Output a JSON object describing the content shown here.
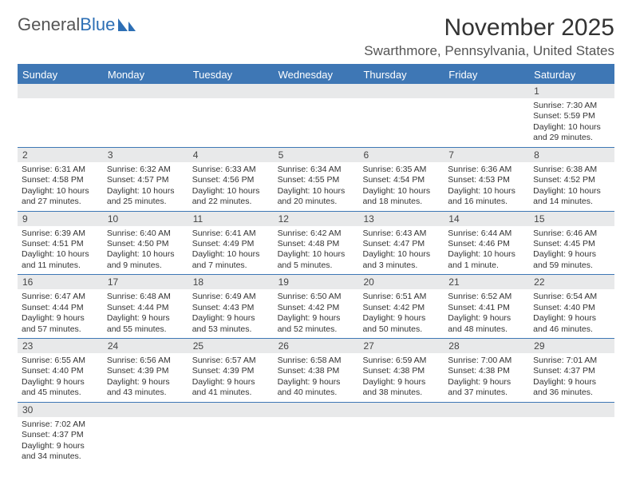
{
  "logo": {
    "text1": "General",
    "text2": "Blue"
  },
  "title": "November 2025",
  "location": "Swarthmore, Pennsylvania, United States",
  "colors": {
    "header_bar": "#3e77b5",
    "daynum_bg": "#e8e9ea",
    "divider": "#3e77b5",
    "text": "#333333",
    "logo_gray": "#555555",
    "logo_blue": "#2d6fb5"
  },
  "typography": {
    "title_fontsize": 30,
    "location_fontsize": 17,
    "dayhead_fontsize": 13,
    "daynum_fontsize": 12,
    "cell_fontsize": 10.5
  },
  "day_headers": [
    "Sunday",
    "Monday",
    "Tuesday",
    "Wednesday",
    "Thursday",
    "Friday",
    "Saturday"
  ],
  "weeks": [
    [
      {
        "n": "",
        "sr": "",
        "ss": "",
        "dl": ""
      },
      {
        "n": "",
        "sr": "",
        "ss": "",
        "dl": ""
      },
      {
        "n": "",
        "sr": "",
        "ss": "",
        "dl": ""
      },
      {
        "n": "",
        "sr": "",
        "ss": "",
        "dl": ""
      },
      {
        "n": "",
        "sr": "",
        "ss": "",
        "dl": ""
      },
      {
        "n": "",
        "sr": "",
        "ss": "",
        "dl": ""
      },
      {
        "n": "1",
        "sr": "Sunrise: 7:30 AM",
        "ss": "Sunset: 5:59 PM",
        "dl": "Daylight: 10 hours and 29 minutes."
      }
    ],
    [
      {
        "n": "2",
        "sr": "Sunrise: 6:31 AM",
        "ss": "Sunset: 4:58 PM",
        "dl": "Daylight: 10 hours and 27 minutes."
      },
      {
        "n": "3",
        "sr": "Sunrise: 6:32 AM",
        "ss": "Sunset: 4:57 PM",
        "dl": "Daylight: 10 hours and 25 minutes."
      },
      {
        "n": "4",
        "sr": "Sunrise: 6:33 AM",
        "ss": "Sunset: 4:56 PM",
        "dl": "Daylight: 10 hours and 22 minutes."
      },
      {
        "n": "5",
        "sr": "Sunrise: 6:34 AM",
        "ss": "Sunset: 4:55 PM",
        "dl": "Daylight: 10 hours and 20 minutes."
      },
      {
        "n": "6",
        "sr": "Sunrise: 6:35 AM",
        "ss": "Sunset: 4:54 PM",
        "dl": "Daylight: 10 hours and 18 minutes."
      },
      {
        "n": "7",
        "sr": "Sunrise: 6:36 AM",
        "ss": "Sunset: 4:53 PM",
        "dl": "Daylight: 10 hours and 16 minutes."
      },
      {
        "n": "8",
        "sr": "Sunrise: 6:38 AM",
        "ss": "Sunset: 4:52 PM",
        "dl": "Daylight: 10 hours and 14 minutes."
      }
    ],
    [
      {
        "n": "9",
        "sr": "Sunrise: 6:39 AM",
        "ss": "Sunset: 4:51 PM",
        "dl": "Daylight: 10 hours and 11 minutes."
      },
      {
        "n": "10",
        "sr": "Sunrise: 6:40 AM",
        "ss": "Sunset: 4:50 PM",
        "dl": "Daylight: 10 hours and 9 minutes."
      },
      {
        "n": "11",
        "sr": "Sunrise: 6:41 AM",
        "ss": "Sunset: 4:49 PM",
        "dl": "Daylight: 10 hours and 7 minutes."
      },
      {
        "n": "12",
        "sr": "Sunrise: 6:42 AM",
        "ss": "Sunset: 4:48 PM",
        "dl": "Daylight: 10 hours and 5 minutes."
      },
      {
        "n": "13",
        "sr": "Sunrise: 6:43 AM",
        "ss": "Sunset: 4:47 PM",
        "dl": "Daylight: 10 hours and 3 minutes."
      },
      {
        "n": "14",
        "sr": "Sunrise: 6:44 AM",
        "ss": "Sunset: 4:46 PM",
        "dl": "Daylight: 10 hours and 1 minute."
      },
      {
        "n": "15",
        "sr": "Sunrise: 6:46 AM",
        "ss": "Sunset: 4:45 PM",
        "dl": "Daylight: 9 hours and 59 minutes."
      }
    ],
    [
      {
        "n": "16",
        "sr": "Sunrise: 6:47 AM",
        "ss": "Sunset: 4:44 PM",
        "dl": "Daylight: 9 hours and 57 minutes."
      },
      {
        "n": "17",
        "sr": "Sunrise: 6:48 AM",
        "ss": "Sunset: 4:44 PM",
        "dl": "Daylight: 9 hours and 55 minutes."
      },
      {
        "n": "18",
        "sr": "Sunrise: 6:49 AM",
        "ss": "Sunset: 4:43 PM",
        "dl": "Daylight: 9 hours and 53 minutes."
      },
      {
        "n": "19",
        "sr": "Sunrise: 6:50 AM",
        "ss": "Sunset: 4:42 PM",
        "dl": "Daylight: 9 hours and 52 minutes."
      },
      {
        "n": "20",
        "sr": "Sunrise: 6:51 AM",
        "ss": "Sunset: 4:42 PM",
        "dl": "Daylight: 9 hours and 50 minutes."
      },
      {
        "n": "21",
        "sr": "Sunrise: 6:52 AM",
        "ss": "Sunset: 4:41 PM",
        "dl": "Daylight: 9 hours and 48 minutes."
      },
      {
        "n": "22",
        "sr": "Sunrise: 6:54 AM",
        "ss": "Sunset: 4:40 PM",
        "dl": "Daylight: 9 hours and 46 minutes."
      }
    ],
    [
      {
        "n": "23",
        "sr": "Sunrise: 6:55 AM",
        "ss": "Sunset: 4:40 PM",
        "dl": "Daylight: 9 hours and 45 minutes."
      },
      {
        "n": "24",
        "sr": "Sunrise: 6:56 AM",
        "ss": "Sunset: 4:39 PM",
        "dl": "Daylight: 9 hours and 43 minutes."
      },
      {
        "n": "25",
        "sr": "Sunrise: 6:57 AM",
        "ss": "Sunset: 4:39 PM",
        "dl": "Daylight: 9 hours and 41 minutes."
      },
      {
        "n": "26",
        "sr": "Sunrise: 6:58 AM",
        "ss": "Sunset: 4:38 PM",
        "dl": "Daylight: 9 hours and 40 minutes."
      },
      {
        "n": "27",
        "sr": "Sunrise: 6:59 AM",
        "ss": "Sunset: 4:38 PM",
        "dl": "Daylight: 9 hours and 38 minutes."
      },
      {
        "n": "28",
        "sr": "Sunrise: 7:00 AM",
        "ss": "Sunset: 4:38 PM",
        "dl": "Daylight: 9 hours and 37 minutes."
      },
      {
        "n": "29",
        "sr": "Sunrise: 7:01 AM",
        "ss": "Sunset: 4:37 PM",
        "dl": "Daylight: 9 hours and 36 minutes."
      }
    ],
    [
      {
        "n": "30",
        "sr": "Sunrise: 7:02 AM",
        "ss": "Sunset: 4:37 PM",
        "dl": "Daylight: 9 hours and 34 minutes."
      },
      {
        "n": "",
        "sr": "",
        "ss": "",
        "dl": ""
      },
      {
        "n": "",
        "sr": "",
        "ss": "",
        "dl": ""
      },
      {
        "n": "",
        "sr": "",
        "ss": "",
        "dl": ""
      },
      {
        "n": "",
        "sr": "",
        "ss": "",
        "dl": ""
      },
      {
        "n": "",
        "sr": "",
        "ss": "",
        "dl": ""
      },
      {
        "n": "",
        "sr": "",
        "ss": "",
        "dl": ""
      }
    ]
  ]
}
